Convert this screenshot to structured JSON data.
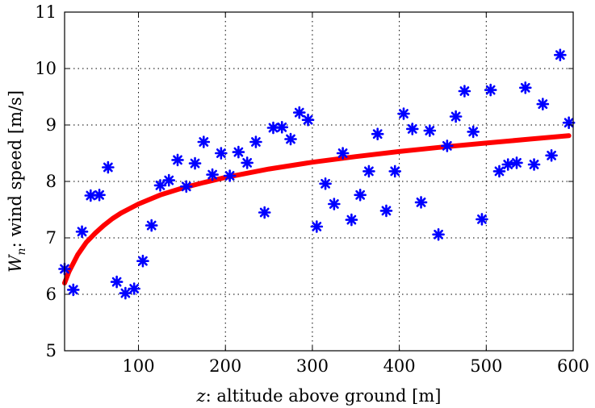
{
  "chart_data": {
    "type": "scatter",
    "xlabel_math": "z",
    "xlabel_text": ":  altitude above ground [m]",
    "ylabel_math": "W",
    "ylabel_sub": "n",
    "ylabel_text": ":  wind speed [m/s]",
    "xlim": [
      15,
      600
    ],
    "ylim": [
      5,
      11
    ],
    "xticks": [
      "100",
      "200",
      "300",
      "400",
      "500",
      "600"
    ],
    "xtick_values": [
      100,
      200,
      300,
      400,
      500,
      600
    ],
    "yticks": [
      "5",
      "6",
      "7",
      "8",
      "9",
      "10",
      "11"
    ],
    "ytick_values": [
      5,
      6,
      7,
      8,
      9,
      10,
      11
    ],
    "grid": true,
    "marker_color": "#0000ff",
    "fit_color": "#ff0000",
    "series": [
      {
        "type": "scatter",
        "marker": "asterisk",
        "points": [
          [
            15,
            6.45
          ],
          [
            25,
            6.08
          ],
          [
            35,
            7.11
          ],
          [
            45,
            7.75
          ],
          [
            55,
            7.76
          ],
          [
            65,
            8.25
          ],
          [
            75,
            6.22
          ],
          [
            85,
            6.02
          ],
          [
            95,
            6.1
          ],
          [
            105,
            6.59
          ],
          [
            115,
            7.22
          ],
          [
            125,
            7.93
          ],
          [
            135,
            8.02
          ],
          [
            145,
            8.38
          ],
          [
            155,
            7.91
          ],
          [
            165,
            8.32
          ],
          [
            175,
            8.7
          ],
          [
            185,
            8.12
          ],
          [
            195,
            8.5
          ],
          [
            205,
            8.1
          ],
          [
            215,
            8.52
          ],
          [
            225,
            8.33
          ],
          [
            235,
            8.7
          ],
          [
            245,
            7.45
          ],
          [
            255,
            8.95
          ],
          [
            265,
            8.96
          ],
          [
            275,
            8.75
          ],
          [
            285,
            9.22
          ],
          [
            295,
            9.09
          ],
          [
            305,
            7.2
          ],
          [
            315,
            7.96
          ],
          [
            325,
            7.6
          ],
          [
            335,
            8.5
          ],
          [
            345,
            7.32
          ],
          [
            355,
            7.76
          ],
          [
            365,
            8.18
          ],
          [
            375,
            8.84
          ],
          [
            385,
            7.48
          ],
          [
            395,
            8.18
          ],
          [
            405,
            9.2
          ],
          [
            415,
            8.93
          ],
          [
            425,
            7.63
          ],
          [
            435,
            8.9
          ],
          [
            445,
            7.06
          ],
          [
            455,
            8.63
          ],
          [
            465,
            9.15
          ],
          [
            475,
            9.6
          ],
          [
            485,
            8.88
          ],
          [
            495,
            7.33
          ],
          [
            505,
            9.62
          ],
          [
            515,
            8.18
          ],
          [
            525,
            8.3
          ],
          [
            535,
            8.33
          ],
          [
            545,
            9.66
          ],
          [
            555,
            8.3
          ],
          [
            565,
            9.37
          ],
          [
            575,
            8.46
          ],
          [
            585,
            10.24
          ],
          [
            595,
            9.04
          ]
        ]
      },
      {
        "type": "line",
        "model": "log-fit",
        "points": [
          [
            15,
            6.2
          ],
          [
            20,
            6.4
          ],
          [
            30,
            6.7
          ],
          [
            40,
            6.92
          ],
          [
            50,
            7.08
          ],
          [
            60,
            7.22
          ],
          [
            70,
            7.34
          ],
          [
            80,
            7.44
          ],
          [
            100,
            7.6
          ],
          [
            125,
            7.76
          ],
          [
            150,
            7.88
          ],
          [
            175,
            7.98
          ],
          [
            200,
            8.07
          ],
          [
            250,
            8.22
          ],
          [
            300,
            8.34
          ],
          [
            350,
            8.44
          ],
          [
            400,
            8.53
          ],
          [
            450,
            8.61
          ],
          [
            500,
            8.68
          ],
          [
            550,
            8.75
          ],
          [
            595,
            8.81
          ]
        ]
      }
    ]
  }
}
